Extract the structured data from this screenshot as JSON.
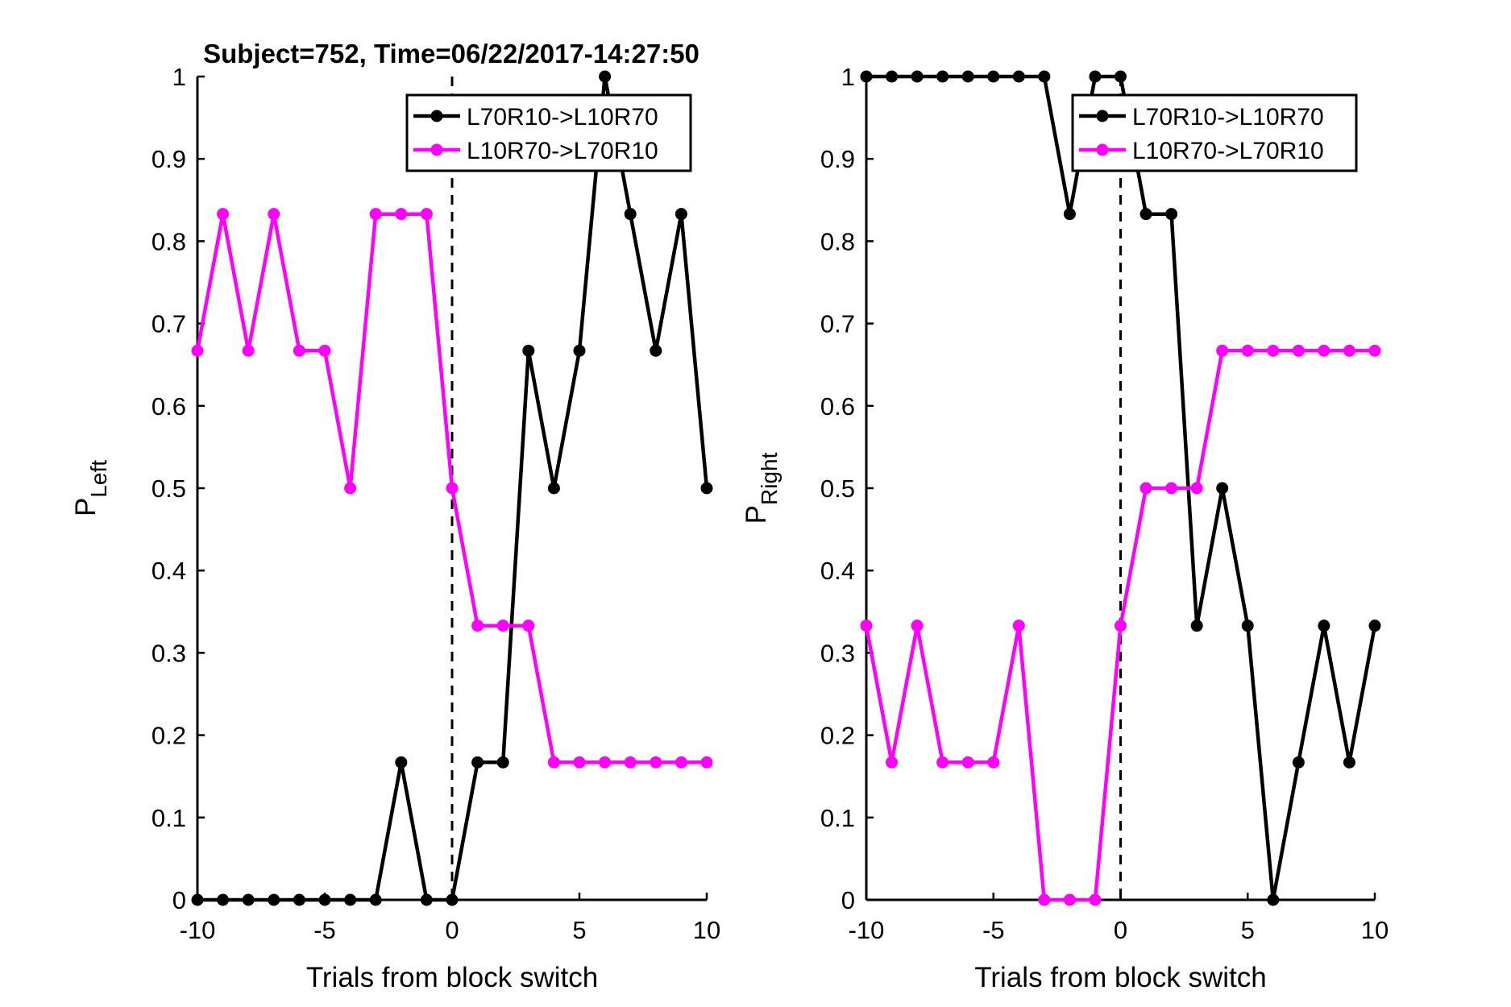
{
  "title": "Subject=752, Time=06/22/2017-14:27:50",
  "chart_data": [
    {
      "type": "line",
      "xlabel": "Trials from block switch",
      "ylabel_main": "P",
      "ylabel_sub": "Left",
      "xlim": [
        -10,
        10
      ],
      "ylim": [
        0,
        1
      ],
      "xticks": [
        -10,
        -5,
        0,
        5,
        10
      ],
      "xtick_labels": [
        "-10",
        "-5",
        "0",
        "5",
        "10"
      ],
      "yticks": [
        0,
        0.1,
        0.2,
        0.3,
        0.4,
        0.5,
        0.6,
        0.7,
        0.8,
        0.9,
        1
      ],
      "ytick_labels": [
        "0",
        "0.1",
        "0.2",
        "0.3",
        "0.4",
        "0.5",
        "0.6",
        "0.7",
        "0.8",
        "0.9",
        "1"
      ],
      "grid": false,
      "legend_position": "top-right",
      "vline_x": 0,
      "x": [
        -10,
        -9,
        -8,
        -7,
        -6,
        -5,
        -4,
        -3,
        -2,
        -1,
        0,
        1,
        2,
        3,
        4,
        5,
        6,
        7,
        8,
        9,
        10
      ],
      "series": [
        {
          "name": "L70R10->L10R70",
          "color": "#000000",
          "values": [
            0,
            0,
            0,
            0,
            0,
            0,
            0,
            0,
            0.167,
            0,
            0,
            0.167,
            0.167,
            0.667,
            0.5,
            0.667,
            1,
            0.833,
            0.667,
            0.833,
            0.5
          ]
        },
        {
          "name": "L10R70->L70R10",
          "color": "#ff00ff",
          "values": [
            0.667,
            0.833,
            0.667,
            0.833,
            0.667,
            0.667,
            0.5,
            0.833,
            0.833,
            0.833,
            0.5,
            0.333,
            0.333,
            0.333,
            0.167,
            0.167,
            0.167,
            0.167,
            0.167,
            0.167,
            0.167
          ]
        }
      ]
    },
    {
      "type": "line",
      "xlabel": "Trials from block switch",
      "ylabel_main": "P",
      "ylabel_sub": "Right",
      "xlim": [
        -10,
        10
      ],
      "ylim": [
        0,
        1
      ],
      "xticks": [
        -10,
        -5,
        0,
        5,
        10
      ],
      "xtick_labels": [
        "-10",
        "-5",
        "0",
        "5",
        "10"
      ],
      "yticks": [
        0,
        0.1,
        0.2,
        0.3,
        0.4,
        0.5,
        0.6,
        0.7,
        0.8,
        0.9,
        1
      ],
      "ytick_labels": [
        "0",
        "0.1",
        "0.2",
        "0.3",
        "0.4",
        "0.5",
        "0.6",
        "0.7",
        "0.8",
        "0.9",
        "1"
      ],
      "grid": false,
      "legend_position": "top-right",
      "vline_x": 0,
      "x": [
        -10,
        -9,
        -8,
        -7,
        -6,
        -5,
        -4,
        -3,
        -2,
        -1,
        0,
        1,
        2,
        3,
        4,
        5,
        6,
        7,
        8,
        9,
        10
      ],
      "series": [
        {
          "name": "L70R10->L10R70",
          "color": "#000000",
          "values": [
            1,
            1,
            1,
            1,
            1,
            1,
            1,
            1,
            0.833,
            1,
            1,
            0.833,
            0.833,
            0.333,
            0.5,
            0.333,
            0,
            0.167,
            0.333,
            0.167,
            0.333
          ]
        },
        {
          "name": "L10R70->L70R10",
          "color": "#ff00ff",
          "values": [
            0.333,
            0.167,
            0.333,
            0.167,
            0.167,
            0.167,
            0.333,
            0,
            0,
            0,
            0.333,
            0.5,
            0.5,
            0.5,
            0.667,
            0.667,
            0.667,
            0.667,
            0.667,
            0.667,
            0.667
          ]
        }
      ]
    }
  ]
}
